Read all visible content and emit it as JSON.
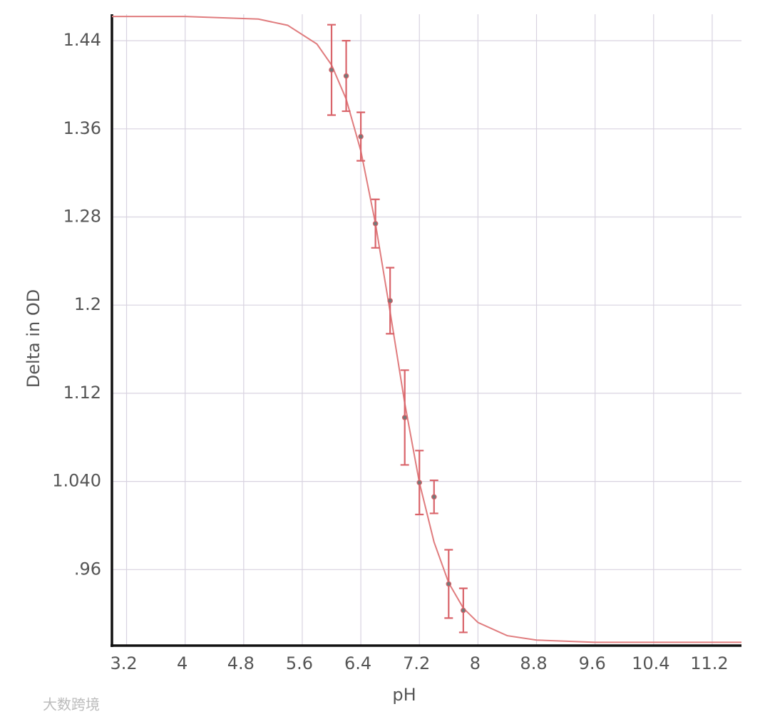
{
  "chart_data": {
    "type": "scatter",
    "xlabel": "pH",
    "ylabel": "Delta in OD",
    "watermark": "大数跨境",
    "xlim": [
      3.0,
      11.6
    ],
    "ylim": [
      0.891,
      1.464
    ],
    "xticks": [
      3.2,
      4,
      4.8,
      5.6,
      6.4,
      7.2,
      8,
      8.8,
      9.6,
      10.4,
      11.2
    ],
    "yticks": [
      {
        "value": 0.96,
        "label": ".96"
      },
      {
        "value": 1.04,
        "label": "1.040"
      },
      1.12,
      1.2,
      1.28,
      1.36,
      1.44
    ],
    "grid": true,
    "points": {
      "color": "#d9646a",
      "x": [
        6.0,
        6.2,
        6.4,
        6.6,
        6.8,
        7.0,
        7.2,
        7.4,
        7.6,
        7.8
      ],
      "values": [
        1.4135,
        1.408,
        1.353,
        1.274,
        1.204,
        1.098,
        1.039,
        1.026,
        0.947,
        0.923
      ],
      "errors": [
        0.041,
        0.032,
        0.022,
        0.022,
        0.03,
        0.043,
        0.029,
        0.015,
        0.031,
        0.02
      ]
    },
    "fit": {
      "color": "#e07c7e",
      "x": [
        3.0,
        4.0,
        5.0,
        5.4,
        5.8,
        6.0,
        6.2,
        6.4,
        6.6,
        6.8,
        7.0,
        7.2,
        7.4,
        7.6,
        7.8,
        8.0,
        8.4,
        8.8,
        9.6,
        10.4,
        11.6
      ],
      "values": [
        1.462,
        1.462,
        1.4596,
        1.454,
        1.437,
        1.418,
        1.387,
        1.34,
        1.274,
        1.194,
        1.111,
        1.039,
        0.985,
        0.948,
        0.925,
        0.912,
        0.9,
        0.896,
        0.894,
        0.894,
        0.894
      ]
    }
  }
}
